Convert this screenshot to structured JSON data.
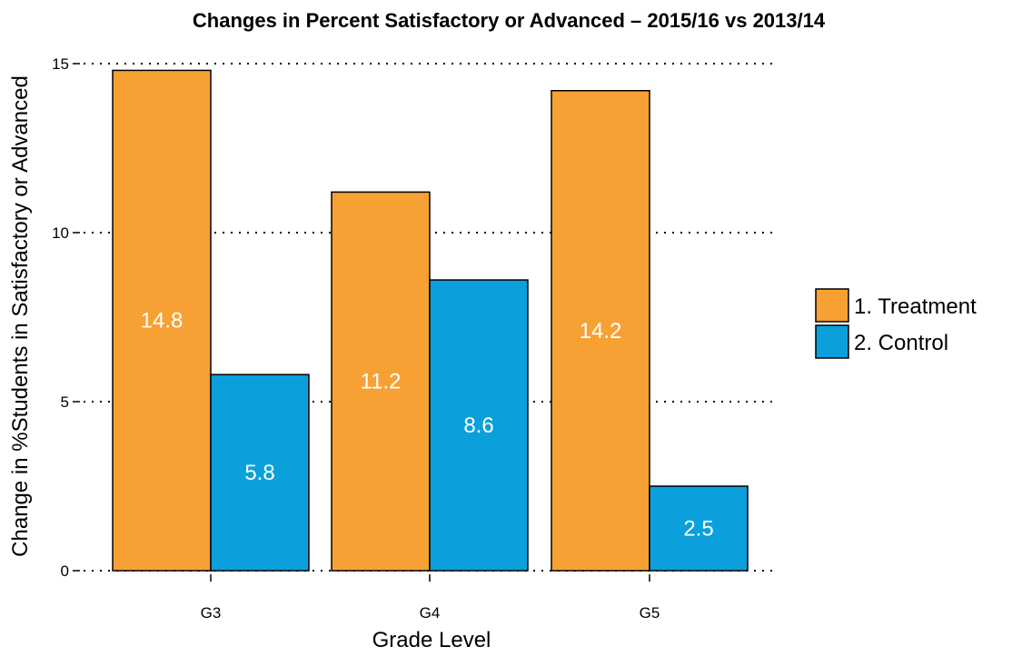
{
  "chart_data": {
    "type": "bar",
    "title": "Changes in Percent Satisfactory or Advanced – 2015/16 vs 2013/14",
    "xlabel": "Grade Level",
    "ylabel": "Change in %Students in Satisfactory or Advanced",
    "categories": [
      "G3",
      "G4",
      "G5"
    ],
    "series": [
      {
        "name": "1. Treatment",
        "values": [
          14.8,
          11.2,
          14.2
        ],
        "labels": [
          "14.8",
          "11.2",
          "14.2"
        ],
        "color": "#F7A134"
      },
      {
        "name": "2. Control",
        "values": [
          5.8,
          8.6,
          2.5
        ],
        "labels": [
          "5.8",
          "8.6",
          "2.5"
        ],
        "color": "#0BA0DB"
      }
    ],
    "ylim": [
      0,
      15
    ],
    "yticks": [
      0,
      5,
      10,
      15
    ],
    "grid": "horizontal dotted",
    "legend_position": "right"
  }
}
